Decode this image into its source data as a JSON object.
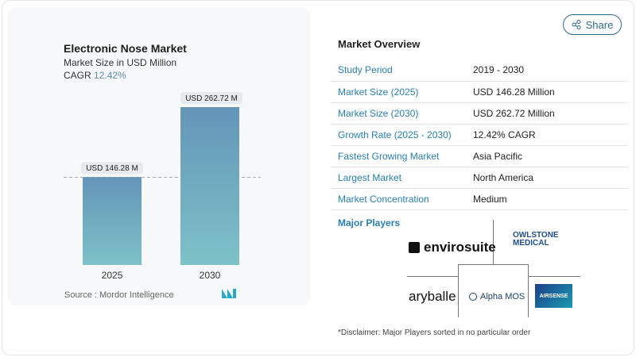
{
  "chart_data": {
    "type": "bar",
    "title": "Electronic Nose Market",
    "subtitle": "Market Size in USD Million",
    "cagr_label": "CAGR",
    "cagr_value": "12.42%",
    "categories": [
      "2025",
      "2030"
    ],
    "values": [
      146.28,
      262.72
    ],
    "data_labels": [
      "USD 146.28 M",
      "USD 262.72 M"
    ],
    "bar_color_top": "#6495b8",
    "bar_color_bottom": "#7dc2c8",
    "source": "Source :  Mordor Intelligence"
  },
  "share_label": "Share",
  "overview": {
    "title": "Market Overview",
    "rows": [
      {
        "k": "Study Period",
        "v": "2019 - 2030"
      },
      {
        "k": "Market Size (2025)",
        "v": "USD 146.28 Million"
      },
      {
        "k": "Market Size (2030)",
        "v": "USD 262.72 Million"
      },
      {
        "k": "Growth Rate (2025 - 2030)",
        "v": "12.42% CAGR"
      },
      {
        "k": "Fastest Growing Market",
        "v": "Asia Pacific"
      },
      {
        "k": "Largest Market",
        "v": "North America"
      },
      {
        "k": "Market Concentration",
        "v": "Medium"
      }
    ]
  },
  "players": {
    "title": "Major Players",
    "logos": [
      "envirosuite",
      "OWLSTONE MEDICAL",
      "aryballe",
      "Alpha MOS",
      "AIRSENSE"
    ],
    "disclaimer": "*Disclaimer: Major Players sorted in no particular order"
  }
}
